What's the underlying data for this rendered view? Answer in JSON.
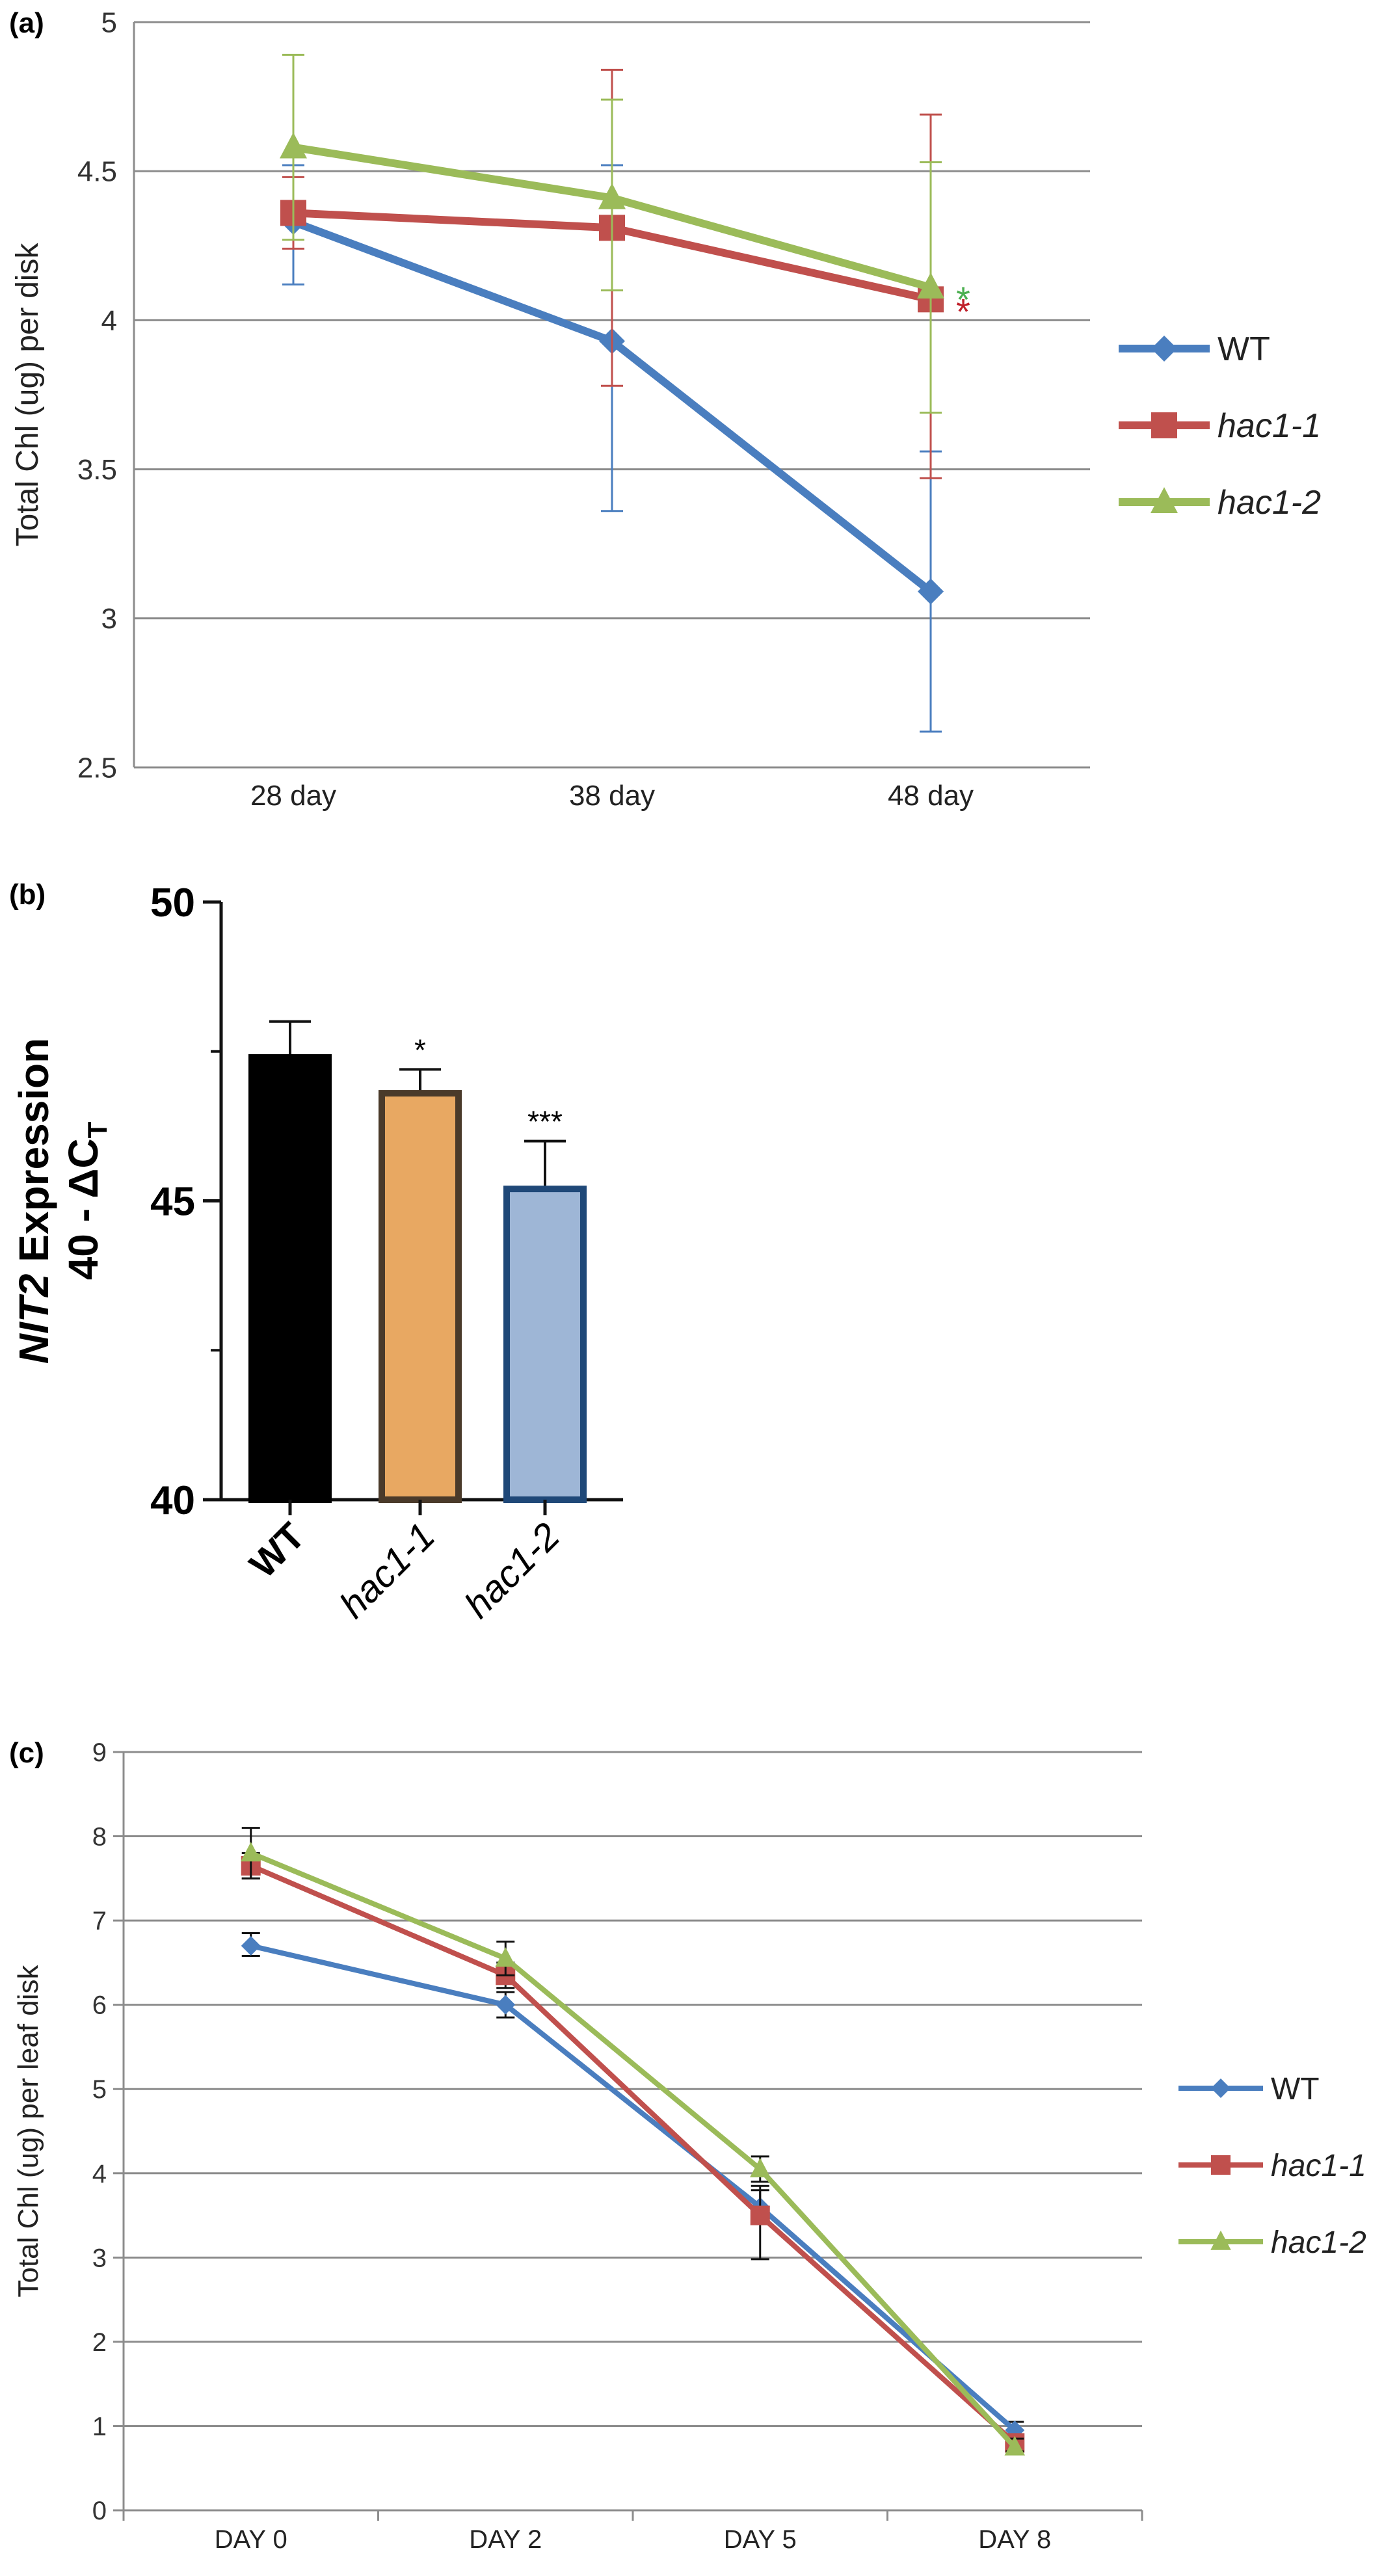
{
  "chart_data": [
    {
      "panel_label": "(a)",
      "type": "line",
      "title": "",
      "xlabel": "",
      "ylabel": "Total Chl (ug) per disk",
      "categories": [
        "28 day",
        "38 day",
        "48 day"
      ],
      "ylim": [
        2.5,
        5
      ],
      "yticks": [
        "2.5",
        "3",
        "3.5",
        "4",
        "4.5",
        "5"
      ],
      "grid": true,
      "legend_position": "right",
      "series": [
        {
          "name": "WT",
          "italic": false,
          "color": "#4a7ebf",
          "marker": "diamond",
          "values": [
            4.33,
            3.93,
            3.09
          ],
          "err_low": [
            4.12,
            3.36,
            2.62
          ],
          "err_high": [
            4.52,
            4.52,
            3.56
          ]
        },
        {
          "name": "hac1-1",
          "italic": true,
          "color": "#c0504d",
          "marker": "square",
          "values": [
            4.36,
            4.31,
            4.07
          ],
          "err_low": [
            4.24,
            3.78,
            3.47
          ],
          "err_high": [
            4.48,
            4.84,
            4.69
          ]
        },
        {
          "name": "hac1-2",
          "italic": true,
          "color": "#9bbb59",
          "marker": "triangle",
          "values": [
            4.58,
            4.41,
            4.11
          ],
          "err_low": [
            4.27,
            4.1,
            3.69
          ],
          "err_high": [
            4.89,
            4.74,
            4.53
          ]
        }
      ],
      "annotations": [
        {
          "text": "*",
          "series": "hac1-2",
          "category": "48 day",
          "color": "#4caf50"
        },
        {
          "text": "*",
          "series": "hac1-1",
          "category": "48 day",
          "color": "#c0202a"
        }
      ]
    },
    {
      "panel_label": "(b)",
      "type": "bar",
      "title": "",
      "xlabel": "",
      "ylabel_gene": "NIT2",
      "ylabel_rest": " Expression",
      "ylabel_line2": "40 - ΔC",
      "ylabel_sub": "T",
      "categories": [
        "WT",
        "hac1-1",
        "hac1-2"
      ],
      "category_italic": [
        false,
        true,
        true
      ],
      "values": [
        47.4,
        46.8,
        45.2
      ],
      "err_high": [
        48.0,
        47.2,
        46.0
      ],
      "ylim": [
        40,
        50
      ],
      "yticks": [
        "40",
        "45",
        "50"
      ],
      "significance": [
        "",
        "*",
        "***"
      ],
      "fill_colors": [
        "#000000",
        "#e8a862",
        "#9eb6d6"
      ],
      "edge_colors": [
        "#000000",
        "#4a3a2a",
        "#1f4878"
      ]
    },
    {
      "panel_label": "(c)",
      "type": "line",
      "title": "",
      "xlabel": "",
      "ylabel": "Total Chl (ug) per leaf disk",
      "categories": [
        "DAY 0",
        "DAY 2",
        "DAY 5",
        "DAY 8"
      ],
      "ylim": [
        0,
        9
      ],
      "yticks": [
        "0",
        "1",
        "2",
        "3",
        "4",
        "5",
        "6",
        "7",
        "8",
        "9"
      ],
      "grid": true,
      "legend_position": "right",
      "series": [
        {
          "name": "WT",
          "italic": false,
          "color": "#4a7ebf",
          "marker": "diamond",
          "values": [
            6.7,
            6.0,
            3.6,
            0.95
          ],
          "err_low": [
            6.58,
            5.85,
            3.45,
            0.85
          ],
          "err_high": [
            6.85,
            6.15,
            3.8,
            1.05
          ]
        },
        {
          "name": "hac1-1",
          "italic": true,
          "color": "#c0504d",
          "marker": "square",
          "values": [
            7.65,
            6.35,
            3.5,
            0.8
          ],
          "err_low": [
            7.5,
            6.2,
            2.98,
            0.7
          ],
          "err_high": [
            7.8,
            6.5,
            3.85,
            0.9
          ]
        },
        {
          "name": "hac1-2",
          "italic": true,
          "color": "#9bbb59",
          "marker": "triangle",
          "values": [
            7.8,
            6.55,
            4.05,
            0.75
          ],
          "err_low": [
            7.5,
            6.35,
            3.9,
            0.7
          ],
          "err_high": [
            8.1,
            6.75,
            4.2,
            0.85
          ]
        }
      ]
    }
  ]
}
